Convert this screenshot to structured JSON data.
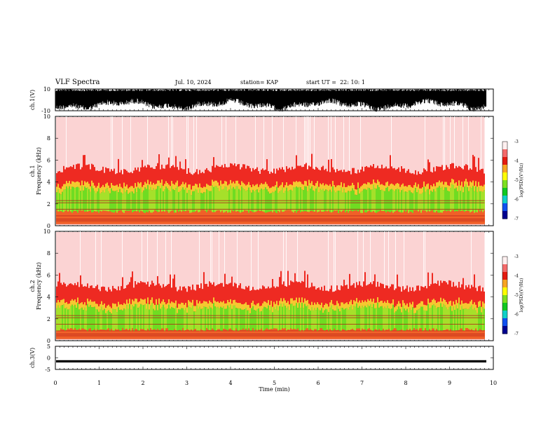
{
  "header": {
    "title": "VLF Spectra",
    "date": "Jul. 10, 2024",
    "station": "station= KAP",
    "start": "start UT =  22: 10: 1"
  },
  "chart_data": [
    {
      "type": "line",
      "ylabel": "ch.1(V)",
      "ylim": [
        -10,
        10
      ],
      "ytick_labels": [
        "-10",
        "10"
      ],
      "description": "dense waveform, amplitude saturating near +10 with troughs down to about -3 to -8",
      "xlim": [
        0,
        10
      ]
    },
    {
      "type": "heatmap",
      "ylabel_top": "ch.1",
      "ylabel": "Frequency (kHz)",
      "ylim": [
        0,
        10
      ],
      "ytick_labels": [
        "0",
        "2",
        "4",
        "6",
        "8",
        "10"
      ],
      "xlim": [
        0,
        10
      ],
      "data_end_min": 9.8,
      "band_edges_khz": {
        "green_low": 1.3,
        "green_high": 3.3,
        "red_top": 5.2
      },
      "colorbar": {
        "label": "log(PSD)(V²/Hz)",
        "ticks": [
          "-3",
          "-4",
          "-5",
          "-6",
          "-7"
        ],
        "range": [
          -7,
          -3
        ]
      }
    },
    {
      "type": "heatmap",
      "ylabel_top": "ch.2",
      "ylabel": "Frequency (kHz)",
      "ylim": [
        0,
        10
      ],
      "ytick_labels": [
        "0",
        "2",
        "4",
        "6",
        "8",
        "10"
      ],
      "xlim": [
        0,
        10
      ],
      "data_end_min": 9.8,
      "band_edges_khz": {
        "green_low": 1.0,
        "green_high": 3.0,
        "red_top": 5.0
      },
      "colorbar": {
        "label": "log(PSD)(V²/Hz)",
        "ticks": [
          "-3",
          "-4",
          "-5",
          "-6",
          "-7"
        ],
        "range": [
          -7,
          -3
        ]
      }
    },
    {
      "type": "line",
      "ylabel": "ch.3(V)",
      "ylim": [
        -5,
        5
      ],
      "ytick_labels": [
        "-5",
        "0",
        "5"
      ],
      "values_range": [
        -2,
        -1
      ],
      "xlim": [
        0,
        10
      ]
    }
  ],
  "xaxis": {
    "label": "Time (min)",
    "ticks": [
      "0",
      "1",
      "2",
      "3",
      "4",
      "5",
      "6",
      "7",
      "8",
      "9",
      "10"
    ],
    "range": [
      0,
      10
    ]
  }
}
